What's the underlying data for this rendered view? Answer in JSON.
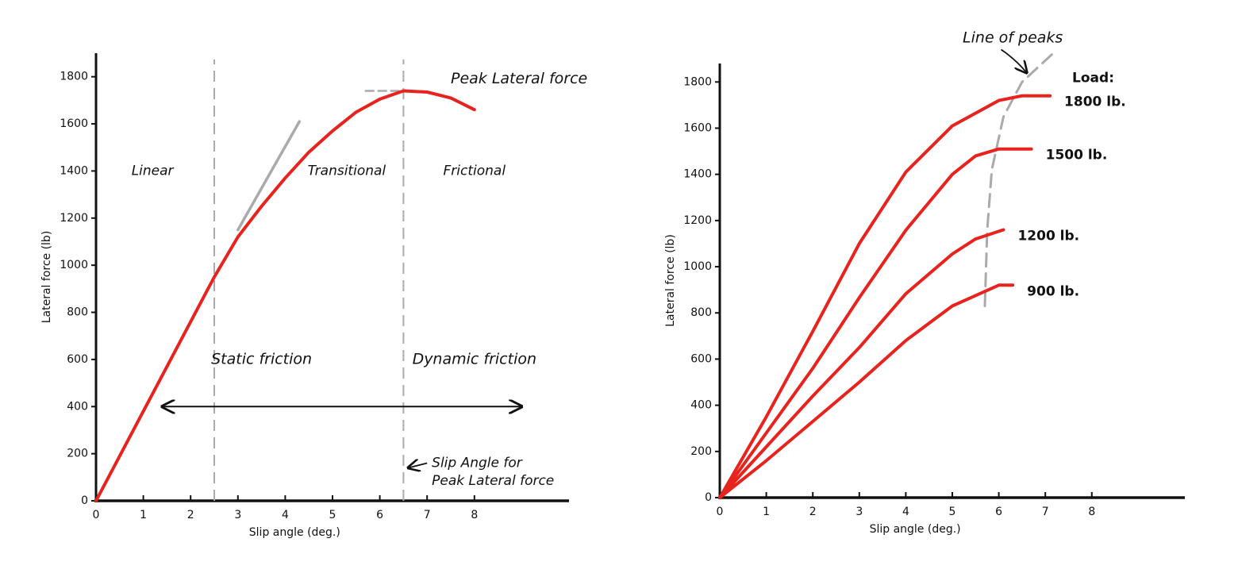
{
  "chart_data": [
    {
      "type": "line",
      "xlabel": "Slip angle (deg.)",
      "ylabel": "Lateral force (lb)",
      "xlim": [
        0,
        10
      ],
      "ylim": [
        0,
        1900
      ],
      "xticks": [
        0,
        1,
        2,
        3,
        4,
        5,
        6,
        7,
        8
      ],
      "yticks": [
        0,
        200,
        400,
        600,
        800,
        1000,
        1200,
        1400,
        1600,
        1800
      ],
      "series": [
        {
          "color": "#e8231e",
          "x": [
            0,
            1,
            2,
            2.5,
            3,
            3.5,
            4,
            4.5,
            5,
            5.5,
            6,
            6.5,
            7,
            7.5,
            8
          ],
          "values": [
            0,
            380,
            760,
            950,
            1120,
            1250,
            1370,
            1480,
            1570,
            1650,
            1705,
            1740,
            1735,
            1710,
            1660
          ]
        }
      ],
      "tangent_line": {
        "color": "#aaaaaa",
        "x": [
          3,
          4.3
        ],
        "values": [
          1150,
          1610
        ]
      },
      "peak_line": {
        "color": "#aaaaaa",
        "x": [
          5.7,
          6.5
        ],
        "values": [
          1740,
          1740
        ]
      },
      "vlines": [
        2.5,
        6.5
      ],
      "annotations": [
        "Linear",
        "Transitional",
        "Frictional",
        "Static friction",
        "Dynamic friction",
        "Peak Lateral force",
        "Slip Angle for",
        "Peak Lateral force"
      ]
    },
    {
      "type": "line",
      "xlabel": "Slip angle (deg.)",
      "ylabel": "Lateral force (lb)",
      "xlim": [
        0,
        10
      ],
      "ylim": [
        0,
        1880
      ],
      "xticks": [
        0,
        1,
        2,
        3,
        4,
        5,
        6,
        7,
        8
      ],
      "yticks": [
        0,
        200,
        400,
        600,
        800,
        1000,
        1200,
        1400,
        1600,
        1800
      ],
      "legend_title": "Load:",
      "series": [
        {
          "name": "1800 lb.",
          "color": "#e8231e",
          "x": [
            0,
            1,
            2,
            3,
            4,
            5,
            6,
            6.5,
            7.1
          ],
          "values": [
            0,
            350,
            720,
            1100,
            1410,
            1610,
            1720,
            1740,
            1740
          ]
        },
        {
          "name": "1500 lb.",
          "color": "#e8231e",
          "x": [
            0,
            1,
            2,
            3,
            4,
            5,
            5.5,
            6,
            6.7
          ],
          "values": [
            0,
            280,
            560,
            866,
            1158,
            1400,
            1480,
            1510,
            1510
          ]
        },
        {
          "name": "1200 lb.",
          "color": "#e8231e",
          "x": [
            0,
            1,
            2,
            3,
            4,
            5,
            5.5,
            6.1
          ],
          "values": [
            0,
            220,
            440,
            650,
            883,
            1055,
            1120,
            1160
          ]
        },
        {
          "name": "900 lb.",
          "color": "#e8231e",
          "x": [
            0,
            1,
            2,
            3,
            4,
            5,
            6,
            6.3
          ],
          "values": [
            0,
            160,
            330,
            500,
            680,
            830,
            920,
            920
          ]
        }
      ],
      "peaks_line": {
        "color": "#aaaaaa",
        "x": [
          5.7,
          5.75,
          5.85,
          6.1,
          6.5,
          7.2
        ],
        "values": [
          830,
          1160,
          1420,
          1650,
          1800,
          1930
        ]
      },
      "annotations": [
        "Line of peaks"
      ]
    }
  ]
}
